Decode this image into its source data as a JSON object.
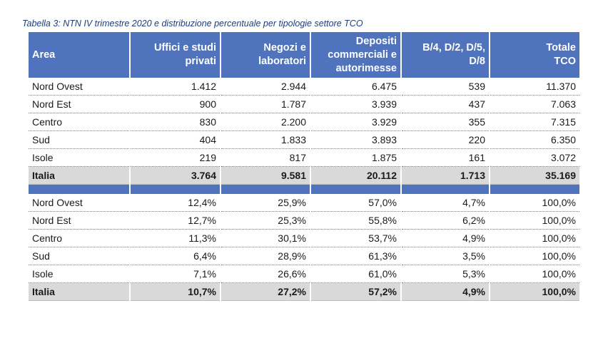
{
  "caption": "Tabella 3: NTN IV trimestre 2020 e distribuzione percentuale per tipologie settore TCO",
  "header": {
    "area": "Area",
    "col1_line1": "Uffici e studi",
    "col1_line2": "privati",
    "col2_line1": "Negozi e",
    "col2_line2": "laboratori",
    "col3_line1": "Depositi",
    "col3_line2": "commerciali e",
    "col3_line3": "autorimesse",
    "col4_line1": "B/4, D/2, D/5,",
    "col4_line2": "D/8",
    "col5_line1": "Totale",
    "col5_line2": "TCO"
  },
  "ntn_rows": [
    {
      "area": "Nord Ovest",
      "uffici": "1.412",
      "negozi": "2.944",
      "depositi": "6.475",
      "b4": "539",
      "totale": "11.370"
    },
    {
      "area": "Nord Est",
      "uffici": "900",
      "negozi": "1.787",
      "depositi": "3.939",
      "b4": "437",
      "totale": "7.063"
    },
    {
      "area": "Centro",
      "uffici": "830",
      "negozi": "2.200",
      "depositi": "3.929",
      "b4": "355",
      "totale": "7.315"
    },
    {
      "area": "Sud",
      "uffici": "404",
      "negozi": "1.833",
      "depositi": "3.893",
      "b4": "220",
      "totale": "6.350"
    },
    {
      "area": "Isole",
      "uffici": "219",
      "negozi": "817",
      "depositi": "1.875",
      "b4": "161",
      "totale": "3.072"
    }
  ],
  "ntn_total": {
    "area": "Italia",
    "uffici": "3.764",
    "negozi": "9.581",
    "depositi": "20.112",
    "b4": "1.713",
    "totale": "35.169"
  },
  "pct_rows": [
    {
      "area": "Nord Ovest",
      "uffici": "12,4%",
      "negozi": "25,9%",
      "depositi": "57,0%",
      "b4": "4,7%",
      "totale": "100,0%"
    },
    {
      "area": "Nord Est",
      "uffici": "12,7%",
      "negozi": "25,3%",
      "depositi": "55,8%",
      "b4": "6,2%",
      "totale": "100,0%"
    },
    {
      "area": "Centro",
      "uffici": "11,3%",
      "negozi": "30,1%",
      "depositi": "53,7%",
      "b4": "4,9%",
      "totale": "100,0%"
    },
    {
      "area": "Sud",
      "uffici": "6,4%",
      "negozi": "28,9%",
      "depositi": "61,3%",
      "b4": "3,5%",
      "totale": "100,0%"
    },
    {
      "area": "Isole",
      "uffici": "7,1%",
      "negozi": "26,6%",
      "depositi": "61,0%",
      "b4": "5,3%",
      "totale": "100,0%"
    }
  ],
  "pct_total": {
    "area": "Italia",
    "uffici": "10,7%",
    "negozi": "27,2%",
    "depositi": "57,2%",
    "b4": "4,9%",
    "totale": "100,0%"
  },
  "colors": {
    "header_bg": "#4f74bd",
    "total_bg": "#d9d9d9",
    "caption": "#1f3d78"
  }
}
